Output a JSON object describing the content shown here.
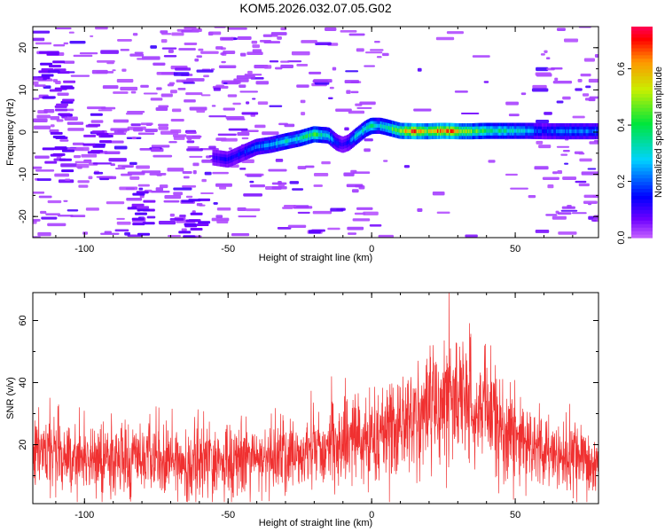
{
  "title": "KOM5.2026.032.07.05.G02",
  "colors": {
    "snr_line": "#f03030",
    "axis": "#000000"
  },
  "chart_data": [
    {
      "type": "heatmap",
      "title": "KOM5.2026.032.07.05.G02",
      "xlabel": "Height of straight line (km)",
      "ylabel": "Frequency (Hz)",
      "xlim": [
        -118,
        79
      ],
      "ylim": [
        -25,
        25
      ],
      "x_ticks": [
        -100,
        -50,
        0,
        50
      ],
      "x_tick_labels": [
        "-100",
        "-50",
        "0",
        "50"
      ],
      "y_ticks": [
        -20,
        -10,
        0,
        10,
        20
      ],
      "y_tick_labels": [
        "-20",
        "-10",
        "0",
        "10",
        "20"
      ],
      "colorbar": {
        "label": "Normalized spectral amplitude",
        "range": [
          0,
          0.75
        ],
        "ticks": [
          0,
          0.2,
          0.4,
          0.6
        ],
        "tick_labels": [
          "0.0",
          "0.2",
          "0.4",
          "0.6"
        ]
      },
      "trace": {
        "description": "dominant spectral ridge frequency vs height",
        "x": [
          -55,
          -50,
          -45,
          -40,
          -35,
          -30,
          -25,
          -20,
          -15,
          -12,
          -10,
          -8,
          -5,
          -2,
          0,
          3,
          5,
          10,
          15,
          20,
          25,
          30,
          35,
          40,
          45,
          50,
          55,
          60,
          65,
          70,
          75,
          79
        ],
        "y": [
          -6,
          -6.5,
          -5,
          -3.5,
          -3,
          -2.2,
          -1.5,
          -0.5,
          -0.8,
          -2.5,
          -3,
          -2.5,
          -0.8,
          0.8,
          1.5,
          1.5,
          1.2,
          0.3,
          0.2,
          0.2,
          0.3,
          0.2,
          0.2,
          0.3,
          0.3,
          0.3,
          0.3,
          0.2,
          0.2,
          0.2,
          0.2,
          0.2
        ],
        "amplitude": [
          0.1,
          0.12,
          0.15,
          0.2,
          0.25,
          0.3,
          0.32,
          0.45,
          0.3,
          0.15,
          0.12,
          0.15,
          0.3,
          0.32,
          0.35,
          0.3,
          0.35,
          0.5,
          0.68,
          0.5,
          0.7,
          0.58,
          0.45,
          0.4,
          0.35,
          0.32,
          0.25,
          0.15,
          0.2,
          0.22,
          0.22,
          0.22
        ]
      }
    },
    {
      "type": "line",
      "xlabel": "Height of straight line (km)",
      "ylabel": "SNR (v/v)",
      "xlim": [
        -118,
        79
      ],
      "ylim": [
        1,
        69
      ],
      "x_ticks": [
        -100,
        -50,
        0,
        50
      ],
      "x_tick_labels": [
        "-100",
        "-50",
        "0",
        "50"
      ],
      "y_ticks": [
        20,
        40,
        60
      ],
      "y_tick_labels": [
        "20",
        "40",
        "60"
      ],
      "series": [
        {
          "name": "SNR",
          "description": "noisy SNR envelope (mean level and spread) vs height",
          "x": [
            -118,
            -100,
            -80,
            -60,
            -40,
            -20,
            -10,
            0,
            10,
            20,
            25,
            30,
            35,
            40,
            50,
            60,
            70,
            79
          ],
          "y": [
            17,
            16,
            15,
            14,
            15,
            18,
            20,
            22,
            26,
            32,
            34,
            35,
            34,
            31,
            22,
            18,
            15,
            13
          ],
          "spread": [
            6,
            6,
            6,
            6,
            6,
            6,
            7,
            8,
            8,
            9,
            10,
            11,
            10,
            9,
            7,
            6,
            6,
            5
          ],
          "peak": {
            "x": 27,
            "y": 69
          }
        }
      ]
    }
  ]
}
